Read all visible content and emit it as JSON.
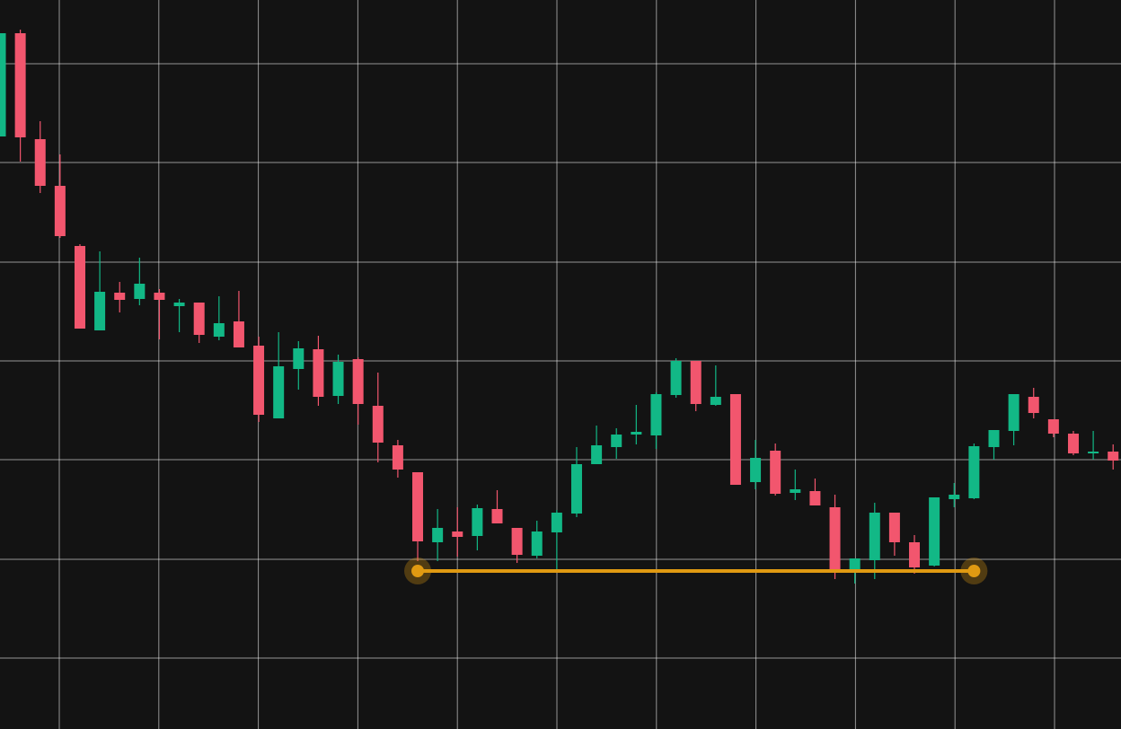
{
  "chart_data": {
    "type": "candlestick",
    "open": [
      660,
      775,
      657,
      605,
      538,
      444,
      486,
      479,
      486,
      471,
      475,
      437,
      454,
      427,
      346,
      401,
      423,
      371,
      412,
      360,
      316,
      286,
      208,
      220,
      215,
      245,
      224,
      193,
      219,
      240,
      295,
      314,
      328,
      327,
      372,
      410,
      361,
      373,
      275,
      310,
      263,
      265,
      247,
      177,
      188,
      241,
      208,
      182,
      256,
      257,
      314,
      332,
      370,
      345,
      329,
      307,
      309
    ],
    "high": [
      775,
      779,
      677,
      640,
      540,
      532,
      498,
      525,
      490,
      479,
      475,
      482,
      488,
      437,
      442,
      432,
      438,
      417,
      414,
      397,
      322,
      286,
      245,
      247,
      250,
      266,
      224,
      232,
      244,
      314,
      338,
      335,
      361,
      375,
      413,
      410,
      405,
      373,
      322,
      318,
      289,
      279,
      261,
      190,
      252,
      241,
      216,
      258,
      274,
      318,
      333,
      373,
      380,
      345,
      332,
      332,
      317
    ],
    "low": [
      660,
      632,
      597,
      547,
      446,
      444,
      464,
      472,
      434,
      442,
      430,
      433,
      425,
      342,
      346,
      378,
      360,
      362,
      339,
      297,
      280,
      187,
      187,
      192,
      199,
      229,
      185,
      190,
      177,
      236,
      295,
      301,
      317,
      312,
      369,
      354,
      360,
      272,
      267,
      260,
      255,
      249,
      167,
      162,
      167,
      193,
      173,
      181,
      247,
      256,
      300,
      316,
      346,
      325,
      305,
      300,
      289
    ],
    "close": [
      775,
      659,
      605,
      549,
      446,
      487,
      478,
      496,
      478,
      475,
      439,
      452,
      425,
      350,
      404,
      424,
      370,
      409,
      362,
      319,
      289,
      209,
      224,
      214,
      246,
      229,
      194,
      220,
      241,
      295,
      316,
      328,
      331,
      373,
      410,
      362,
      370,
      272,
      302,
      262,
      267,
      249,
      177,
      190,
      241,
      208,
      180,
      258,
      261,
      315,
      333,
      373,
      352,
      329,
      307,
      309,
      299
    ],
    "up_color": "#12b886",
    "down_color": "#f2566e",
    "ylim": [
      0,
      812
    ],
    "yticks": [
      79,
      189,
      300,
      410,
      520,
      631,
      741
    ],
    "grid": true,
    "level_line": {
      "value": 176,
      "start_index": 21,
      "end_index": 49,
      "color": "#e09a12"
    }
  }
}
